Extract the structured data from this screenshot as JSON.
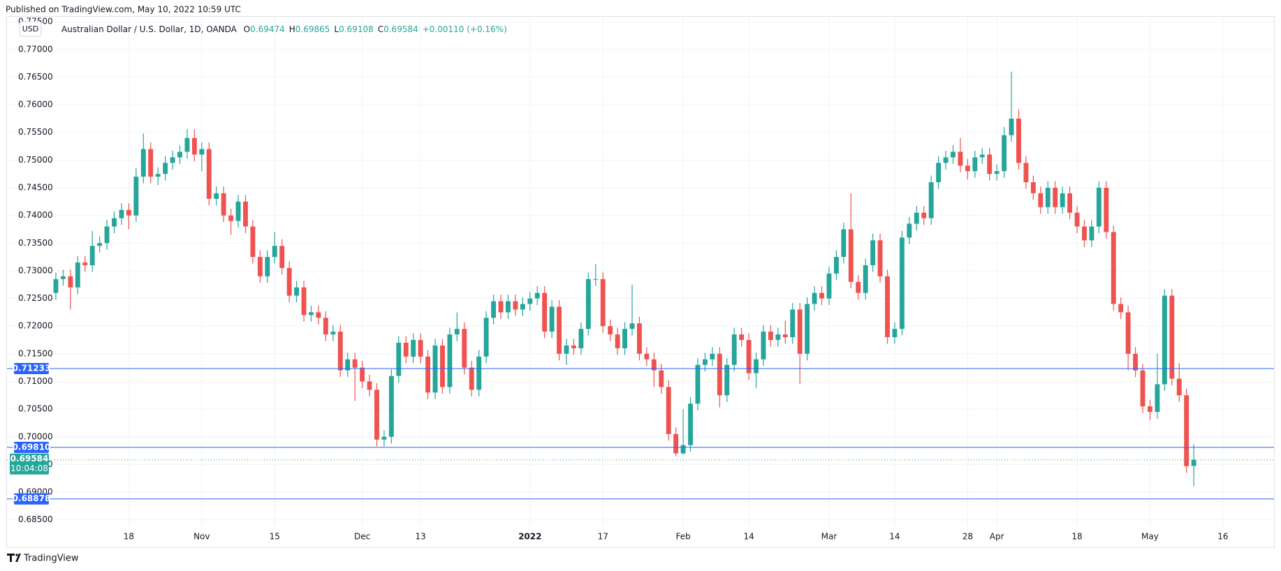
{
  "header": "Published on TradingView.com, May 10, 2022 10:59 UTC",
  "footer": "TradingView",
  "chart_data": {
    "type": "candlestick",
    "currency": "USD",
    "legend": {
      "name": "Australian Dollar / U.S. Dollar, 1D, OANDA",
      "keys": [
        "O",
        "H",
        "L",
        "C"
      ],
      "change": "+0.00110 (+0.16%)"
    },
    "countdown": "10:04:08",
    "up_color": "#26a69a",
    "down_color": "#ef5350",
    "line_color": "#2962ff",
    "grid": true,
    "xlim": [
      -6.7,
      167
    ],
    "ylim": [
      0.6837,
      0.7759
    ],
    "xticks": [
      {
        "value": 10,
        "label": "18"
      },
      {
        "value": 20,
        "label": "Nov"
      },
      {
        "value": 30,
        "label": "15"
      },
      {
        "value": 42,
        "label": "Dec"
      },
      {
        "value": 50,
        "label": "13"
      },
      {
        "value": 65,
        "label": "2022"
      },
      {
        "value": 75,
        "label": "17"
      },
      {
        "value": 86,
        "label": "Feb"
      },
      {
        "value": 95,
        "label": "14"
      },
      {
        "value": 106,
        "label": "Mar"
      },
      {
        "value": 115,
        "label": "14"
      },
      {
        "value": 125,
        "label": "28"
      },
      {
        "value": 129,
        "label": "Apr"
      },
      {
        "value": 140,
        "label": "18"
      },
      {
        "value": 150,
        "label": "May"
      },
      {
        "value": 160,
        "label": "16"
      }
    ],
    "yticks": [
      {
        "value": 0.685,
        "label": "0.68500"
      },
      {
        "value": 0.69,
        "label": "0.69000"
      },
      {
        "value": 0.695,
        "label": "0.69500"
      },
      {
        "value": 0.7,
        "label": "0.70000"
      },
      {
        "value": 0.705,
        "label": "0.70500"
      },
      {
        "value": 0.71,
        "label": "0.71000"
      },
      {
        "value": 0.715,
        "label": "0.71500"
      },
      {
        "value": 0.72,
        "label": "0.72000"
      },
      {
        "value": 0.725,
        "label": "0.72500"
      },
      {
        "value": 0.73,
        "label": "0.73000"
      },
      {
        "value": 0.735,
        "label": "0.73500"
      },
      {
        "value": 0.74,
        "label": "0.74000"
      },
      {
        "value": 0.745,
        "label": "0.74500"
      },
      {
        "value": 0.75,
        "label": "0.75000"
      },
      {
        "value": 0.755,
        "label": "0.75500"
      },
      {
        "value": 0.76,
        "label": "0.76000"
      },
      {
        "value": 0.765,
        "label": "0.76500"
      },
      {
        "value": 0.77,
        "label": "0.77000"
      },
      {
        "value": 0.775,
        "label": "0.77500"
      }
    ],
    "price_lines": [
      0.71233,
      {
        "value": 0.6981,
        "label": "0.69810"
      },
      0.68878
    ],
    "open": [
      0.726,
      0.7285,
      0.729,
      0.727,
      0.7315,
      0.731,
      0.7345,
      0.735,
      0.738,
      0.7395,
      0.741,
      0.74,
      0.747,
      0.752,
      0.747,
      0.7475,
      0.7495,
      0.7505,
      0.7515,
      0.754,
      0.751,
      0.752,
      0.743,
      0.744,
      0.74,
      0.739,
      0.7425,
      0.738,
      0.7325,
      0.729,
      0.7325,
      0.7345,
      0.7305,
      0.7255,
      0.727,
      0.722,
      0.7225,
      0.7215,
      0.7185,
      0.719,
      0.712,
      0.714,
      0.7125,
      0.71,
      0.7085,
      0.6995,
      0.7,
      0.711,
      0.717,
      0.7145,
      0.7175,
      0.7145,
      0.708,
      0.7165,
      0.709,
      0.7185,
      0.7195,
      0.7125,
      0.7085,
      0.7145,
      0.7215,
      0.7245,
      0.7225,
      0.7245,
      0.723,
      0.724,
      0.725,
      0.726,
      0.719,
      0.7235,
      0.715,
      0.7165,
      0.716,
      0.7195,
      0.7285,
      0.7285,
      0.72,
      0.7185,
      0.716,
      0.7195,
      0.7205,
      0.715,
      0.714,
      0.712,
      0.709,
      0.7005,
      0.697,
      0.6985,
      0.706,
      0.713,
      0.714,
      0.715,
      0.7075,
      0.713,
      0.7185,
      0.7175,
      0.7115,
      0.714,
      0.719,
      0.7175,
      0.7185,
      0.718,
      0.723,
      0.715,
      0.724,
      0.726,
      0.725,
      0.7295,
      0.7325,
      0.7375,
      0.728,
      0.726,
      0.731,
      0.7355,
      0.729,
      0.718,
      0.7195,
      0.736,
      0.7385,
      0.7405,
      0.7395,
      0.746,
      0.7495,
      0.7505,
      0.7515,
      0.749,
      0.748,
      0.7505,
      0.751,
      0.7475,
      0.748,
      0.7545,
      0.7575,
      0.7495,
      0.746,
      0.744,
      0.7415,
      0.745,
      0.7415,
      0.744,
      0.7405,
      0.738,
      0.7355,
      0.738,
      0.745,
      0.737,
      0.724,
      0.7225,
      0.715,
      0.712,
      0.7055,
      0.7045,
      0.7095,
      0.7255,
      0.7105,
      0.7075,
      0.69474
    ],
    "high": [
      0.7297,
      0.7302,
      0.7302,
      0.7327,
      0.7327,
      0.7372,
      0.7362,
      0.7392,
      0.7407,
      0.7422,
      0.7422,
      0.7485,
      0.7548,
      0.7532,
      0.7487,
      0.7507,
      0.7517,
      0.7527,
      0.7556,
      0.7556,
      0.7532,
      0.7532,
      0.7452,
      0.7452,
      0.7412,
      0.7437,
      0.7437,
      0.7392,
      0.7337,
      0.7337,
      0.737,
      0.7357,
      0.7317,
      0.7282,
      0.7282,
      0.7237,
      0.7237,
      0.7227,
      0.7202,
      0.7202,
      0.7152,
      0.7152,
      0.7137,
      0.7112,
      0.7097,
      0.7012,
      0.7122,
      0.7182,
      0.7182,
      0.7187,
      0.7187,
      0.7157,
      0.7177,
      0.7177,
      0.7197,
      0.7225,
      0.7207,
      0.7137,
      0.7157,
      0.7227,
      0.7257,
      0.7257,
      0.7257,
      0.7257,
      0.7252,
      0.7262,
      0.7272,
      0.7272,
      0.7247,
      0.7247,
      0.7177,
      0.7177,
      0.7207,
      0.7297,
      0.7312,
      0.7297,
      0.7212,
      0.7197,
      0.7207,
      0.7275,
      0.7217,
      0.7162,
      0.7152,
      0.7132,
      0.7102,
      0.7017,
      0.705,
      0.7072,
      0.7142,
      0.7152,
      0.7162,
      0.7162,
      0.7142,
      0.7197,
      0.7197,
      0.7187,
      0.7152,
      0.7202,
      0.7202,
      0.7197,
      0.721,
      0.7242,
      0.7242,
      0.7252,
      0.7272,
      0.7272,
      0.7307,
      0.7337,
      0.7387,
      0.744,
      0.7292,
      0.7322,
      0.7367,
      0.7367,
      0.7302,
      0.7207,
      0.7372,
      0.7397,
      0.7417,
      0.7417,
      0.7472,
      0.7507,
      0.7517,
      0.7527,
      0.754,
      0.7502,
      0.7517,
      0.7522,
      0.7522,
      0.7492,
      0.756,
      0.766,
      0.7592,
      0.7507,
      0.7472,
      0.7452,
      0.7462,
      0.7462,
      0.7452,
      0.7452,
      0.7417,
      0.7392,
      0.7392,
      0.7462,
      0.7462,
      0.7382,
      0.7252,
      0.7237,
      0.7162,
      0.7132,
      0.7067,
      0.715,
      0.7267,
      0.7267,
      0.7133,
      0.7087,
      0.69865
    ],
    "low": [
      0.7248,
      0.7273,
      0.723,
      0.7258,
      0.7298,
      0.7298,
      0.7333,
      0.7338,
      0.7368,
      0.7383,
      0.7375,
      0.7388,
      0.7458,
      0.7458,
      0.7455,
      0.7463,
      0.7483,
      0.7493,
      0.7503,
      0.7498,
      0.748,
      0.7418,
      0.7418,
      0.7388,
      0.7365,
      0.7378,
      0.7368,
      0.7313,
      0.7278,
      0.7278,
      0.7313,
      0.7293,
      0.7243,
      0.7243,
      0.7208,
      0.7208,
      0.7203,
      0.7173,
      0.7173,
      0.7108,
      0.7108,
      0.7065,
      0.7088,
      0.7073,
      0.6983,
      0.6983,
      0.6988,
      0.7098,
      0.7133,
      0.7133,
      0.7133,
      0.7068,
      0.7068,
      0.7078,
      0.7078,
      0.7173,
      0.7113,
      0.7073,
      0.7073,
      0.7133,
      0.7203,
      0.7213,
      0.7213,
      0.7218,
      0.7218,
      0.7228,
      0.7238,
      0.7178,
      0.7178,
      0.7138,
      0.713,
      0.7148,
      0.7148,
      0.7183,
      0.7273,
      0.7188,
      0.7173,
      0.7148,
      0.7148,
      0.7183,
      0.7138,
      0.7128,
      0.709,
      0.7078,
      0.6993,
      0.6965,
      0.6968,
      0.6973,
      0.7048,
      0.7118,
      0.7128,
      0.7053,
      0.7063,
      0.7118,
      0.7163,
      0.7103,
      0.7088,
      0.7128,
      0.7163,
      0.7163,
      0.7168,
      0.7168,
      0.7095,
      0.7138,
      0.7228,
      0.7238,
      0.7238,
      0.7283,
      0.7313,
      0.7268,
      0.7248,
      0.7248,
      0.7298,
      0.7278,
      0.7168,
      0.7168,
      0.7183,
      0.7348,
      0.7373,
      0.7383,
      0.7383,
      0.7448,
      0.7483,
      0.7493,
      0.7478,
      0.7465,
      0.7468,
      0.7493,
      0.7463,
      0.7463,
      0.7468,
      0.7533,
      0.7483,
      0.7448,
      0.7428,
      0.7403,
      0.7403,
      0.7403,
      0.7403,
      0.7393,
      0.7368,
      0.7343,
      0.7343,
      0.7368,
      0.7358,
      0.7228,
      0.7213,
      0.712,
      0.7108,
      0.7043,
      0.703,
      0.7033,
      0.7083,
      0.7093,
      0.7063,
      0.6935,
      0.69108
    ],
    "close": [
      0.7285,
      0.729,
      0.727,
      0.7315,
      0.731,
      0.7345,
      0.735,
      0.738,
      0.7395,
      0.741,
      0.74,
      0.747,
      0.752,
      0.747,
      0.7475,
      0.7495,
      0.7505,
      0.7515,
      0.754,
      0.751,
      0.752,
      0.743,
      0.744,
      0.74,
      0.739,
      0.7425,
      0.738,
      0.7325,
      0.729,
      0.7325,
      0.7345,
      0.7305,
      0.7255,
      0.727,
      0.722,
      0.7225,
      0.7215,
      0.7185,
      0.719,
      0.712,
      0.714,
      0.7125,
      0.71,
      0.7085,
      0.6995,
      0.7,
      0.711,
      0.717,
      0.7145,
      0.7175,
      0.7145,
      0.708,
      0.7165,
      0.709,
      0.7185,
      0.7195,
      0.7125,
      0.7085,
      0.7145,
      0.7215,
      0.7245,
      0.7225,
      0.7245,
      0.723,
      0.724,
      0.725,
      0.726,
      0.719,
      0.7235,
      0.715,
      0.7165,
      0.716,
      0.7195,
      0.7285,
      0.7285,
      0.72,
      0.7185,
      0.716,
      0.7195,
      0.7205,
      0.715,
      0.714,
      0.712,
      0.709,
      0.7005,
      0.697,
      0.6985,
      0.706,
      0.713,
      0.714,
      0.715,
      0.7075,
      0.713,
      0.7185,
      0.7175,
      0.7115,
      0.714,
      0.719,
      0.7175,
      0.7185,
      0.718,
      0.723,
      0.715,
      0.724,
      0.726,
      0.725,
      0.7295,
      0.7325,
      0.7375,
      0.728,
      0.726,
      0.731,
      0.7355,
      0.729,
      0.718,
      0.7195,
      0.736,
      0.7385,
      0.7405,
      0.7395,
      0.746,
      0.7495,
      0.7505,
      0.7515,
      0.749,
      0.748,
      0.7505,
      0.751,
      0.7475,
      0.748,
      0.7545,
      0.7575,
      0.7495,
      0.746,
      0.744,
      0.7415,
      0.745,
      0.7415,
      0.744,
      0.7405,
      0.738,
      0.7355,
      0.738,
      0.745,
      0.737,
      0.724,
      0.7225,
      0.715,
      0.712,
      0.7055,
      0.7045,
      0.7095,
      0.7255,
      0.7105,
      0.7075,
      0.6947,
      0.69584
    ]
  }
}
